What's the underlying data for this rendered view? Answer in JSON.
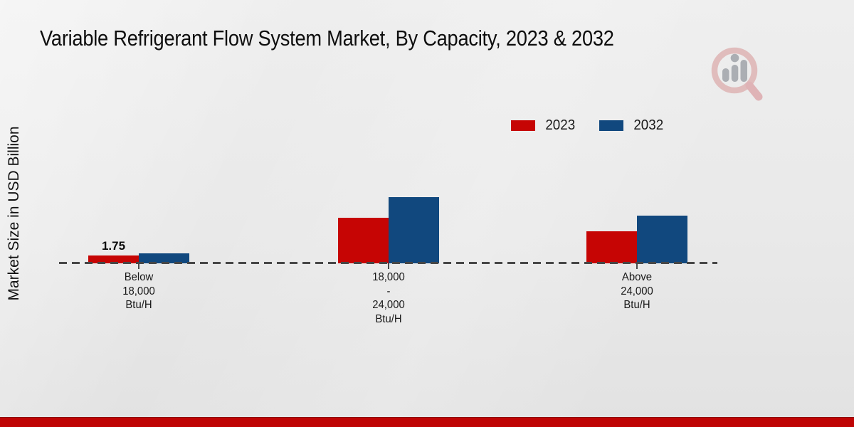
{
  "title": "Variable Refrigerant Flow System Market, By Capacity, 2023 & 2032",
  "y_axis_label": "Market Size in USD Billion",
  "legend": [
    {
      "label": "2023",
      "color": "#c60504"
    },
    {
      "label": "2032",
      "color": "#11487e"
    }
  ],
  "watermark_icon": "market-research-future-logo",
  "footer_bar_color": "#bf0404",
  "chart_data": {
    "type": "bar",
    "categories": [
      "Below\n18,000\nBtu/H",
      "18,000\n-\n24,000\nBtu/H",
      "Above\n24,000\nBtu/H"
    ],
    "series": [
      {
        "name": "2023",
        "color": "#c60504",
        "values": [
          1.75,
          10.1,
          7.1
        ],
        "data_labels": [
          "1.75",
          null,
          null
        ]
      },
      {
        "name": "2032",
        "color": "#11487e",
        "values": [
          2.3,
          14.8,
          10.6
        ],
        "data_labels": [
          null,
          null,
          null
        ]
      }
    ],
    "title": "Variable Refrigerant Flow System Market, By Capacity, 2023 & 2032",
    "xlabel": "",
    "ylabel": "Market Size in USD Billion",
    "ylim": [
      0,
      20
    ],
    "grid": false,
    "legend_position": "top-right",
    "baseline_style": "dashed",
    "value_label_shown": "only first 2023 bar"
  }
}
